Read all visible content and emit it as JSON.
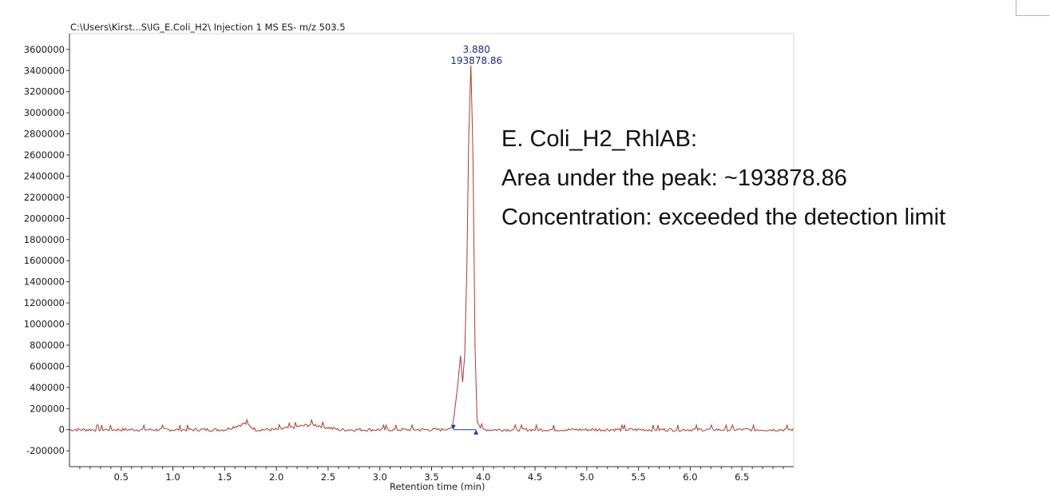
{
  "chart_data": {
    "type": "line",
    "title": "C:\\Users\\Kirst...S\\IG_E.Coli_H2\\ Injection 1 MS ES-  m/z 503.5",
    "xlabel": "Retention time (min)",
    "ylabel": "",
    "xlim": [
      0.0,
      7.0
    ],
    "ylim": [
      -350000,
      3750000
    ],
    "x_ticks": [
      0.5,
      1.0,
      1.5,
      2.0,
      2.5,
      3.0,
      3.5,
      4.0,
      4.5,
      5.0,
      5.5,
      6.0,
      6.5
    ],
    "x_tick_labels": [
      "0.5",
      "1.0",
      "1.5",
      "2.0",
      "2.5",
      "3.0",
      "3.5",
      "4.0",
      "4.5",
      "5.0",
      "5.5",
      "6.0",
      "6.5"
    ],
    "y_ticks": [
      -200000,
      0,
      200000,
      400000,
      600000,
      800000,
      1000000,
      1200000,
      1400000,
      1600000,
      1800000,
      2000000,
      2200000,
      2400000,
      2600000,
      2800000,
      3000000,
      3200000,
      3400000,
      3600000
    ],
    "y_tick_labels": [
      "-200000",
      "0",
      "200000",
      "400000",
      "600000",
      "800000",
      "1000000",
      "1200000",
      "1400000",
      "1600000",
      "1800000",
      "2000000",
      "2200000",
      "2400000",
      "2600000",
      "2800000",
      "3000000",
      "3200000",
      "3400000",
      "3600000"
    ],
    "grid": false,
    "series": [
      {
        "color": "#b03a2e",
        "x": [
          0.0,
          0.3,
          0.6,
          0.9,
          1.2,
          1.5,
          1.7,
          1.8,
          2.0,
          2.35,
          2.6,
          3.0,
          3.4,
          3.6,
          3.7,
          3.72,
          3.75,
          3.78,
          3.8,
          3.82,
          3.84,
          3.86,
          3.88,
          3.9,
          3.92,
          3.94,
          3.97,
          4.0,
          4.3,
          4.7,
          5.0,
          5.3,
          5.6,
          6.0,
          6.5,
          7.0
        ],
        "y": [
          0,
          0,
          0,
          0,
          0,
          0,
          60000,
          0,
          0,
          50000,
          0,
          0,
          0,
          0,
          20000,
          150000,
          400000,
          700000,
          450000,
          700000,
          1500000,
          2800000,
          3450000,
          2600000,
          800000,
          80000,
          20000,
          0,
          0,
          0,
          0,
          0,
          0,
          0,
          0,
          0
        ]
      }
    ],
    "baseline": {
      "x": [
        3.71,
        3.93
      ],
      "y": [
        0,
        0
      ],
      "color": "#1f3fa8"
    },
    "peak": {
      "x": 3.88,
      "y": 3450000,
      "label_time": "3.880",
      "label_area": "193878.86"
    }
  },
  "annotation": {
    "line1": "E. Coli_H2_RhlAB:",
    "line2": "Area under the peak: ~193878.86",
    "line3": "Concentration: exceeded the detection limit"
  }
}
